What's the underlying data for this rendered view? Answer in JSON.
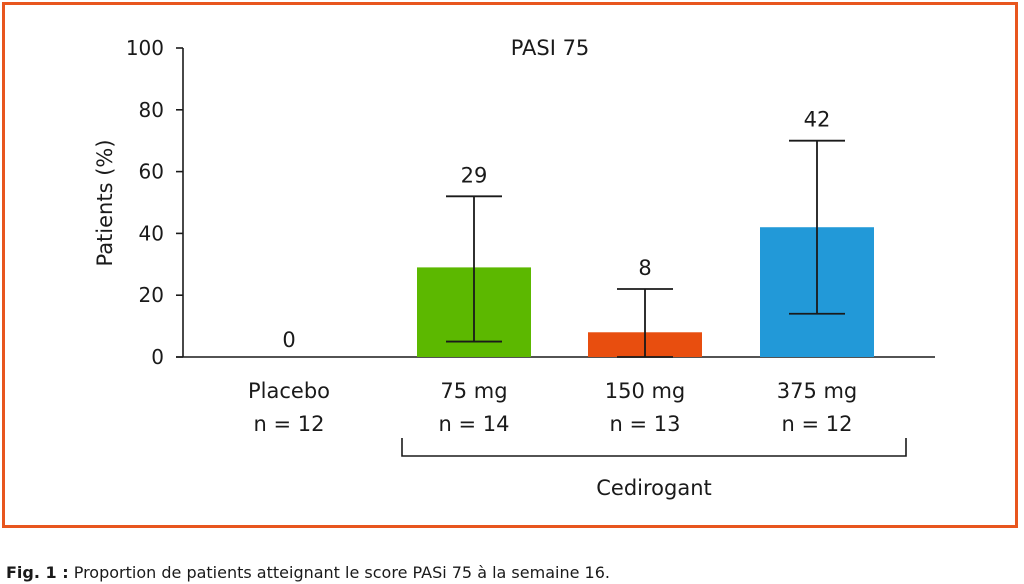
{
  "chart_data": {
    "type": "bar",
    "title": "PASI 75",
    "ylabel": "Patients (%)",
    "xlabel": "",
    "ylim": [
      0,
      100
    ],
    "yticks": [
      0,
      20,
      40,
      60,
      80,
      100
    ],
    "categories": [
      {
        "name": "Placebo",
        "n_label": "n = 12"
      },
      {
        "name": "75 mg",
        "n_label": "n = 14"
      },
      {
        "name": "150 mg",
        "n_label": "n = 13"
      },
      {
        "name": "375 mg",
        "n_label": "n = 12"
      }
    ],
    "values": [
      0,
      29,
      8,
      42
    ],
    "value_labels": [
      "0",
      "29",
      "8",
      "42"
    ],
    "error_bars": [
      null,
      [
        5,
        52
      ],
      [
        0,
        22
      ],
      [
        14,
        70
      ]
    ],
    "colors": [
      "#ffffff",
      "#5cb800",
      "#e84e0f",
      "#2299d8"
    ],
    "group_bracket": {
      "label": "Cedirogant",
      "from_category": 1,
      "to_category": 3
    },
    "grid": false
  },
  "caption": {
    "prefix": "Fig. 1 :",
    "text": " Proportion de patients atteignant le score PASi 75 à la semaine 16."
  },
  "frame_color": "#e8561e"
}
